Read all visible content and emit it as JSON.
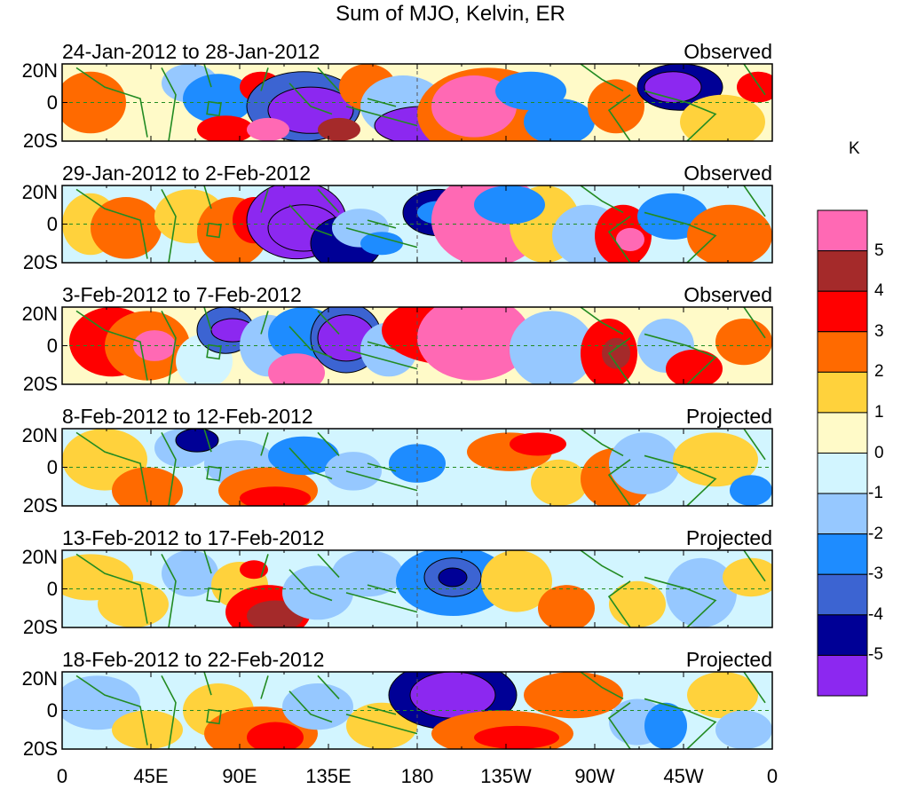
{
  "title": "Sum of MJO, Kelvin, ER",
  "panels": [
    {
      "date_range": "24-Jan-2012 to 28-Jan-2012",
      "status": "Observed"
    },
    {
      "date_range": "29-Jan-2012 to 2-Feb-2012",
      "status": "Observed"
    },
    {
      "date_range": "3-Feb-2012 to 7-Feb-2012",
      "status": "Observed"
    },
    {
      "date_range": "8-Feb-2012 to 12-Feb-2012",
      "status": "Projected"
    },
    {
      "date_range": "13-Feb-2012 to 17-Feb-2012",
      "status": "Projected"
    },
    {
      "date_range": "18-Feb-2012 to 22-Feb-2012",
      "status": "Projected"
    }
  ],
  "lat_labels": [
    "20N",
    "0",
    "20S"
  ],
  "lon_labels": [
    "0",
    "45E",
    "90E",
    "135E",
    "180",
    "135W",
    "90W",
    "45W",
    "0"
  ],
  "colorbar": {
    "unit": "K",
    "labels": [
      "5",
      "4",
      "3",
      "2",
      "1",
      "0",
      "-1",
      "-2",
      "-3",
      "-4",
      "-5"
    ],
    "colors": [
      "#ff69b4",
      "#a52a2a",
      "#ff0000",
      "#ff6a00",
      "#ffd23c",
      "#fffac8",
      "#d2f5ff",
      "#96c8ff",
      "#1e8cff",
      "#3c64d2",
      "#000096",
      "#8c28f0"
    ]
  },
  "colors": {
    "coast": "#228b22",
    "grid": "#228b22",
    "frame": "#000000"
  }
}
